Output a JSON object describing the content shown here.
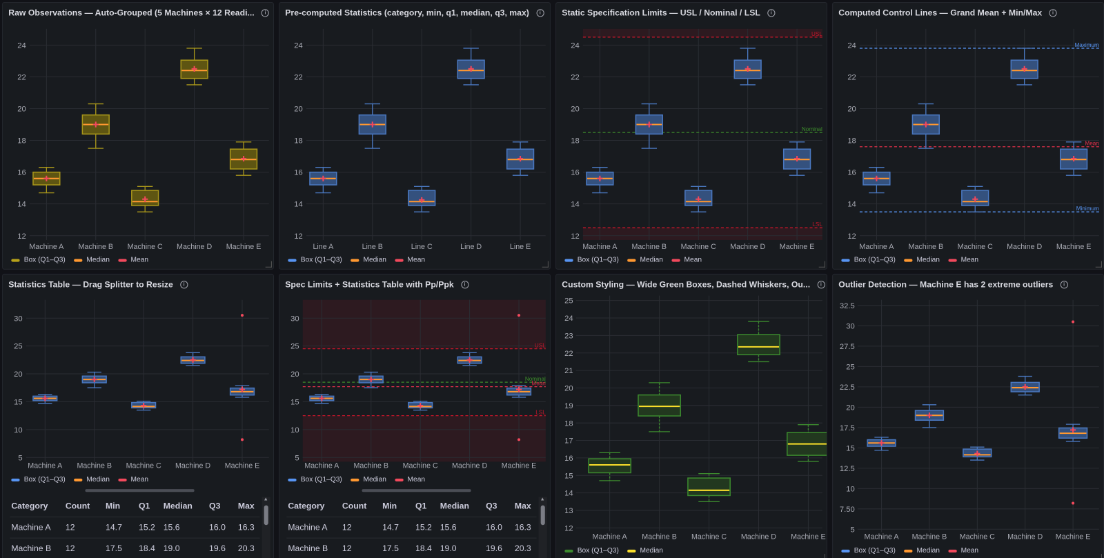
{
  "colors": {
    "background": "#111217",
    "panel": "#181b1f",
    "grid": "#2a2d33",
    "box_blue_stroke": "#4a78c0",
    "box_blue_fill": "#34517e",
    "box_olive_stroke": "#a8961a",
    "box_olive_fill": "#5e5512",
    "box_green_stroke": "#3c8a2e",
    "box_green_fill": "#22381f",
    "median_orange": "#ff9830",
    "median_yellow": "#fade2a",
    "mean_red": "#f2495c",
    "limit_red": "#c4162a",
    "nominal_green": "#3e8f2c",
    "control_blue": "#5794f2"
  },
  "panels": [
    {
      "title": "Raw Observations — Auto-Grouped (5 Machines × 12 Readi...",
      "style": "olive",
      "ylim": [
        11.73,
        25.02
      ],
      "y_ticks": [
        "12",
        "14",
        "16",
        "18",
        "20",
        "22",
        "24"
      ],
      "categories": [
        {
          "name": "Machine A",
          "min": 14.7,
          "q1": 15.2,
          "median": 15.6,
          "q3": 16.0,
          "max": 16.3,
          "mean": 15.6
        },
        {
          "name": "Machine B",
          "min": 17.5,
          "q1": 18.4,
          "median": 19.0,
          "q3": 19.6,
          "max": 20.3,
          "mean": 19.0
        },
        {
          "name": "Machine C",
          "min": 13.5,
          "q1": 13.9,
          "median": 14.15,
          "q3": 14.85,
          "max": 15.1,
          "mean": 14.3
        },
        {
          "name": "Machine D",
          "min": 21.5,
          "q1": 21.9,
          "median": 22.4,
          "q3": 23.05,
          "max": 23.8,
          "mean": 22.5
        },
        {
          "name": "Machine E",
          "min": 15.8,
          "q1": 16.2,
          "median": 16.8,
          "q3": 17.45,
          "max": 17.9,
          "mean": 16.85
        }
      ],
      "limits": [],
      "legend": [
        {
          "label": "Box (Q1–Q3)",
          "color": "#b8a21a"
        },
        {
          "label": "Median",
          "color": "#ff9830"
        },
        {
          "label": "Mean",
          "color": "#f2495c"
        }
      ]
    },
    {
      "title": "Pre-computed Statistics (category, min, q1, median, q3, max)",
      "style": "blue",
      "ylim": [
        11.73,
        25.02
      ],
      "y_ticks": [
        "12",
        "14",
        "16",
        "18",
        "20",
        "22",
        "24"
      ],
      "categories": [
        {
          "name": "Line A",
          "min": 14.7,
          "q1": 15.2,
          "median": 15.6,
          "q3": 16.0,
          "max": 16.3,
          "mean": 15.6
        },
        {
          "name": "Line B",
          "min": 17.5,
          "q1": 18.4,
          "median": 19.0,
          "q3": 19.6,
          "max": 20.3,
          "mean": 19.0
        },
        {
          "name": "Line C",
          "min": 13.5,
          "q1": 13.9,
          "median": 14.15,
          "q3": 14.85,
          "max": 15.1,
          "mean": 14.25
        },
        {
          "name": "Line D",
          "min": 21.5,
          "q1": 21.9,
          "median": 22.4,
          "q3": 23.05,
          "max": 23.8,
          "mean": 22.5
        },
        {
          "name": "Line E",
          "min": 15.8,
          "q1": 16.2,
          "median": 16.8,
          "q3": 17.45,
          "max": 17.9,
          "mean": 16.85
        }
      ],
      "limits": [],
      "legend": [
        {
          "label": "Box (Q1–Q3)",
          "color": "#5794f2"
        },
        {
          "label": "Median",
          "color": "#ff9830"
        },
        {
          "label": "Mean",
          "color": "#f2495c"
        }
      ]
    },
    {
      "title": "Static Specification Limits — USL / Nominal / LSL",
      "style": "blue",
      "ylim": [
        11.73,
        25.02
      ],
      "y_ticks": [
        "12",
        "14",
        "16",
        "18",
        "20",
        "22",
        "24"
      ],
      "categories": [
        {
          "name": "Machine A",
          "min": 14.7,
          "q1": 15.2,
          "median": 15.6,
          "q3": 16.0,
          "max": 16.3,
          "mean": 15.6
        },
        {
          "name": "Machine B",
          "min": 17.5,
          "q1": 18.4,
          "median": 19.0,
          "q3": 19.6,
          "max": 20.3,
          "mean": 19.0
        },
        {
          "name": "Machine C",
          "min": 13.5,
          "q1": 13.9,
          "median": 14.15,
          "q3": 14.85,
          "max": 15.1,
          "mean": 14.3
        },
        {
          "name": "Machine D",
          "min": 21.5,
          "q1": 21.9,
          "median": 22.4,
          "q3": 23.05,
          "max": 23.8,
          "mean": 22.5
        },
        {
          "name": "Machine E",
          "min": 15.8,
          "q1": 16.2,
          "median": 16.8,
          "q3": 17.45,
          "max": 17.9,
          "mean": 16.85
        }
      ],
      "limits": [
        {
          "label": "USL",
          "value": 24.5,
          "color": "#c4162a",
          "shade": "above"
        },
        {
          "label": "Nominal",
          "value": 18.5,
          "color": "#3e8f2c"
        },
        {
          "label": "LSL",
          "value": 12.5,
          "color": "#c4162a",
          "shade": "below"
        }
      ],
      "legend": [
        {
          "label": "Box (Q1–Q3)",
          "color": "#5794f2"
        },
        {
          "label": "Median",
          "color": "#ff9830"
        },
        {
          "label": "Mean",
          "color": "#f2495c"
        }
      ]
    },
    {
      "title": "Computed Control Lines — Grand Mean + Min/Max",
      "style": "blue",
      "ylim": [
        11.73,
        25.02
      ],
      "y_ticks": [
        "12",
        "14",
        "16",
        "18",
        "20",
        "22",
        "24"
      ],
      "categories": [
        {
          "name": "Machine A",
          "min": 14.7,
          "q1": 15.2,
          "median": 15.6,
          "q3": 16.0,
          "max": 16.3,
          "mean": 15.6
        },
        {
          "name": "Machine B",
          "min": 17.5,
          "q1": 18.4,
          "median": 19.0,
          "q3": 19.6,
          "max": 20.3,
          "mean": 19.0
        },
        {
          "name": "Machine C",
          "min": 13.5,
          "q1": 13.9,
          "median": 14.15,
          "q3": 14.85,
          "max": 15.1,
          "mean": 14.3
        },
        {
          "name": "Machine D",
          "min": 21.5,
          "q1": 21.9,
          "median": 22.4,
          "q3": 23.05,
          "max": 23.8,
          "mean": 22.5
        },
        {
          "name": "Machine E",
          "min": 15.8,
          "q1": 16.2,
          "median": 16.8,
          "q3": 17.45,
          "max": 17.9,
          "mean": 16.85
        }
      ],
      "limits": [
        {
          "label": "Maximum",
          "value": 23.8,
          "color": "#5794f2"
        },
        {
          "label": "Mean",
          "value": 17.6,
          "color": "#e0304a"
        },
        {
          "label": "Minimum",
          "value": 13.5,
          "color": "#5794f2"
        }
      ],
      "legend": [
        {
          "label": "Box (Q1–Q3)",
          "color": "#5794f2"
        },
        {
          "label": "Median",
          "color": "#ff9830"
        },
        {
          "label": "Mean",
          "color": "#f2495c"
        }
      ]
    },
    {
      "title": "Statistics Table — Drag Splitter to Resize",
      "style": "blue",
      "ylim": [
        4.24,
        33.28
      ],
      "y_ticks": [
        "5",
        "10",
        "15",
        "20",
        "25",
        "30"
      ],
      "categories": [
        {
          "name": "Machine A",
          "min": 14.7,
          "q1": 15.2,
          "median": 15.6,
          "q3": 16.0,
          "max": 16.3,
          "mean": 15.6
        },
        {
          "name": "Machine B",
          "min": 17.5,
          "q1": 18.4,
          "median": 19.0,
          "q3": 19.6,
          "max": 20.3,
          "mean": 19.0
        },
        {
          "name": "Machine C",
          "min": 13.5,
          "q1": 13.9,
          "median": 14.15,
          "q3": 14.85,
          "max": 15.1,
          "mean": 14.3
        },
        {
          "name": "Machine D",
          "min": 21.5,
          "q1": 21.9,
          "median": 22.4,
          "q3": 23.05,
          "max": 23.8,
          "mean": 22.5
        },
        {
          "name": "Machine E",
          "min": 15.8,
          "q1": 16.2,
          "median": 16.8,
          "q3": 17.45,
          "max": 17.9,
          "mean": 17.2,
          "outliers": [
            30.5,
            8.2
          ]
        }
      ],
      "limits": [],
      "legend": [
        {
          "label": "Box (Q1–Q3)",
          "color": "#5794f2"
        },
        {
          "label": "Median",
          "color": "#ff9830"
        },
        {
          "label": "Mean",
          "color": "#f2495c"
        }
      ],
      "table": {
        "columns": [
          "Category",
          "Count",
          "Min",
          "Q1",
          "Median",
          "Q3",
          "Max"
        ],
        "rows": [
          [
            "Machine A",
            "12",
            "14.7",
            "15.2",
            "15.6",
            "16.0",
            "16.3"
          ],
          [
            "Machine B",
            "12",
            "17.5",
            "18.4",
            "19.0",
            "19.6",
            "20.3"
          ]
        ]
      }
    },
    {
      "title": "Spec Limits + Statistics Table with Pp/Ppk",
      "style": "blue",
      "ylim": [
        4.24,
        33.28
      ],
      "y_ticks": [
        "5",
        "10",
        "15",
        "20",
        "25",
        "30"
      ],
      "categories": [
        {
          "name": "Machine A",
          "min": 14.7,
          "q1": 15.2,
          "median": 15.6,
          "q3": 16.0,
          "max": 16.3,
          "mean": 15.6
        },
        {
          "name": "Machine B",
          "min": 17.5,
          "q1": 18.4,
          "median": 19.0,
          "q3": 19.6,
          "max": 20.3,
          "mean": 19.0
        },
        {
          "name": "Machine C",
          "min": 13.5,
          "q1": 13.9,
          "median": 14.15,
          "q3": 14.85,
          "max": 15.1,
          "mean": 14.3
        },
        {
          "name": "Machine D",
          "min": 21.5,
          "q1": 21.9,
          "median": 22.4,
          "q3": 23.05,
          "max": 23.8,
          "mean": 22.5
        },
        {
          "name": "Machine E",
          "min": 15.8,
          "q1": 16.2,
          "median": 16.8,
          "q3": 17.45,
          "max": 17.9,
          "mean": 17.2,
          "outliers": [
            30.5,
            8.2
          ]
        }
      ],
      "limits": [
        {
          "label": "USL",
          "value": 24.5,
          "color": "#c4162a",
          "shade": "above"
        },
        {
          "label": "Nominal",
          "value": 18.5,
          "color": "#3e8f2c"
        },
        {
          "label": "Mean",
          "value": 17.7,
          "color": "#e0304a"
        },
        {
          "label": "LSL",
          "value": 12.5,
          "color": "#c4162a",
          "shade": "below"
        }
      ],
      "legend": [
        {
          "label": "Box (Q1–Q3)",
          "color": "#5794f2"
        },
        {
          "label": "Median",
          "color": "#ff9830"
        },
        {
          "label": "Mean",
          "color": "#f2495c"
        }
      ],
      "table": {
        "columns": [
          "Category",
          "Count",
          "Min",
          "Q1",
          "Median",
          "Q3",
          "Max"
        ],
        "rows": [
          [
            "Machine A",
            "12",
            "14.7",
            "15.2",
            "15.6",
            "16.0",
            "16.3"
          ],
          [
            "Machine B",
            "12",
            "17.5",
            "18.4",
            "19.0",
            "19.6",
            "20.3"
          ]
        ]
      }
    },
    {
      "title": "Custom Styling — Wide Green Boxes, Dashed Whiskers, Ou...",
      "style": "green",
      "ylim": [
        11.8,
        25.28
      ],
      "y_ticks": [
        "12",
        "13",
        "14",
        "15",
        "16",
        "17",
        "18",
        "19",
        "20",
        "21",
        "22",
        "23",
        "24",
        "25"
      ],
      "categories": [
        {
          "name": "Machine A",
          "min": 14.7,
          "q1": 15.15,
          "median": 15.6,
          "q3": 15.95,
          "max": 16.3
        },
        {
          "name": "Machine B",
          "min": 17.5,
          "q1": 18.4,
          "median": 18.95,
          "q3": 19.6,
          "max": 20.3
        },
        {
          "name": "Machine C",
          "min": 13.5,
          "q1": 13.85,
          "median": 14.15,
          "q3": 14.85,
          "max": 15.1
        },
        {
          "name": "Machine D",
          "min": 21.5,
          "q1": 21.9,
          "median": 22.35,
          "q3": 23.05,
          "max": 23.8
        },
        {
          "name": "Machine E",
          "min": 15.8,
          "q1": 16.15,
          "median": 16.8,
          "q3": 17.45,
          "max": 17.9
        }
      ],
      "limits": [],
      "legend": [
        {
          "label": "Box (Q1–Q3)",
          "color": "#3c8a2e"
        },
        {
          "label": "Median",
          "color": "#fade2a"
        }
      ]
    },
    {
      "title": "Outlier Detection — Machine E has 2 extreme outliers",
      "style": "blue",
      "ylim": [
        4.65,
        33.2
      ],
      "y_ticks": [
        "5",
        "7.50",
        "10",
        "12.5",
        "15",
        "17.5",
        "20",
        "22.5",
        "25",
        "27.5",
        "30",
        "32.5"
      ],
      "categories": [
        {
          "name": "Machine A",
          "min": 14.7,
          "q1": 15.2,
          "median": 15.6,
          "q3": 16.0,
          "max": 16.3,
          "mean": 15.6
        },
        {
          "name": "Machine B",
          "min": 17.5,
          "q1": 18.4,
          "median": 19.0,
          "q3": 19.6,
          "max": 20.3,
          "mean": 19.0
        },
        {
          "name": "Machine C",
          "min": 13.5,
          "q1": 13.9,
          "median": 14.15,
          "q3": 14.85,
          "max": 15.1,
          "mean": 14.3
        },
        {
          "name": "Machine D",
          "min": 21.5,
          "q1": 21.9,
          "median": 22.4,
          "q3": 23.05,
          "max": 23.8,
          "mean": 22.5
        },
        {
          "name": "Machine E",
          "min": 15.8,
          "q1": 16.2,
          "median": 16.8,
          "q3": 17.45,
          "max": 17.9,
          "mean": 17.2,
          "outliers": [
            30.5,
            8.2
          ]
        }
      ],
      "limits": [],
      "legend": [
        {
          "label": "Box (Q1–Q3)",
          "color": "#5794f2"
        },
        {
          "label": "Median",
          "color": "#ff9830"
        },
        {
          "label": "Mean",
          "color": "#f2495c"
        }
      ]
    }
  ]
}
